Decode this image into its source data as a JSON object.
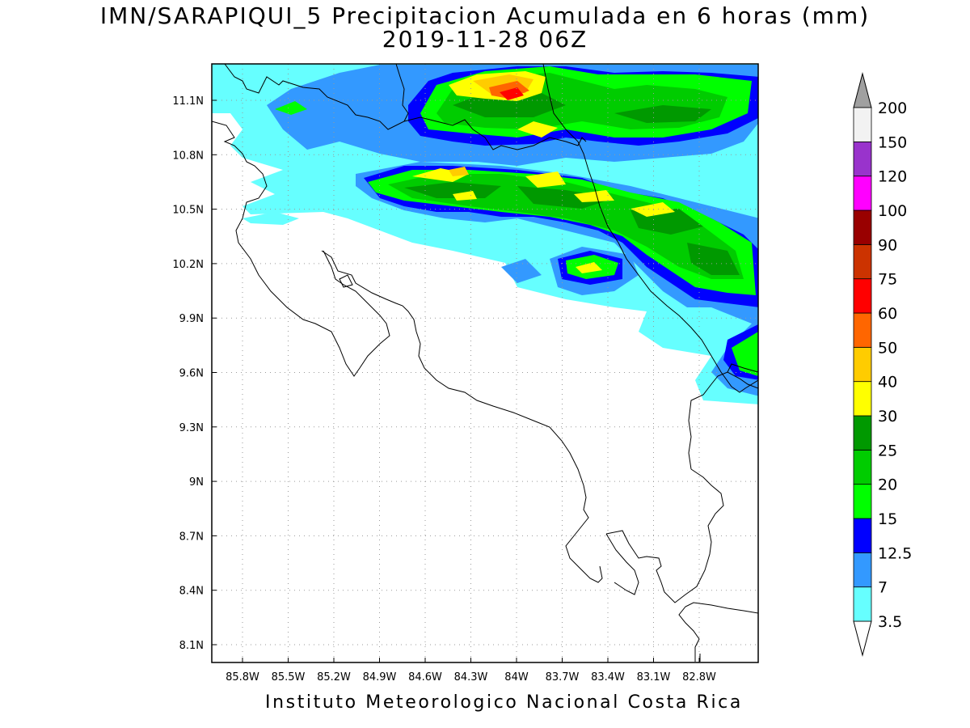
{
  "title": "IMN/SARAPIQUI_5 Precipitacion Acumulada en 6 horas (mm)",
  "subtitle": "2019-11-28 06Z",
  "footer": "Instituto Meteorologico Nacional Costa Rica",
  "map": {
    "lon_range": [
      -86.1,
      -83.1
    ],
    "lat_range": [
      8.0,
      11.3
    ],
    "xticks": [
      "85.8W",
      "85.5W",
      "85.2W",
      "84.9W",
      "84.6W",
      "84.3W",
      "84W",
      "83.7W",
      "83.4W",
      "83.1W",
      "82.8W"
    ],
    "yticks": [
      "11.1N",
      "10.8N",
      "10.5N",
      "10.2N",
      "9.9N",
      "9.6N",
      "9.3N",
      "9N",
      "8.7N",
      "8.4N",
      "8.1N"
    ],
    "grid": "dotted"
  },
  "colorbar": {
    "levels": [
      "3.5",
      "7",
      "12.5",
      "15",
      "20",
      "25",
      "30",
      "40",
      "50",
      "60",
      "75",
      "90",
      "100",
      "120",
      "150",
      "200"
    ],
    "colors": [
      "#ffffff",
      "#66ffff",
      "#3399ff",
      "#0000ff",
      "#00ff00",
      "#00cc00",
      "#009900",
      "#ffff00",
      "#ffcc00",
      "#ff6600",
      "#ff0000",
      "#cc3300",
      "#990000",
      "#ff00ff",
      "#9933cc",
      "#f2f2f2",
      "#a0a0a0"
    ]
  }
}
